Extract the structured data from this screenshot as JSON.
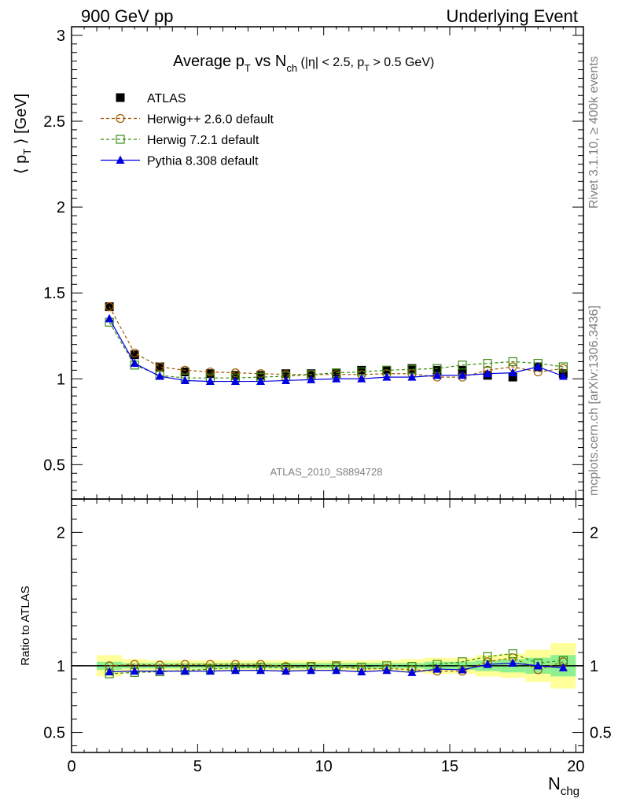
{
  "header": {
    "left": "900 GeV pp",
    "right": "Underlying Event"
  },
  "side": {
    "rivet": "Rivet 3.1.10, ≥ 400k events",
    "mcplots": "mcplots.cern.ch [arXiv:1306.3436]"
  },
  "chart_data": [
    {
      "type": "line",
      "title": {
        "main": "Average p",
        "main_sub": "T",
        "vs": " vs N",
        "vs_sub": "ch",
        "cuts_a": " (|η| < 2.5, p",
        "cuts_sub": "T",
        "cuts_b": " > 0.5 GeV)"
      },
      "analysis_label": "ATLAS_2010_S8894728",
      "ylabel": "⟨ p_T ⟩ [GeV]",
      "ylim": [
        0.3,
        3.05
      ],
      "y_ticks": [
        "0.5",
        "1",
        "1.5",
        "2",
        "2.5",
        "3"
      ],
      "x": [
        1.5,
        2.5,
        3.5,
        4.5,
        5.5,
        6.5,
        7.5,
        8.5,
        9.5,
        10.5,
        11.5,
        12.5,
        13.5,
        14.5,
        15.5,
        16.5,
        17.5,
        18.5,
        19.5
      ],
      "series": [
        {
          "name": "ATLAS",
          "style": "data",
          "color": "#000000",
          "marker": "square-filled",
          "values": [
            1.42,
            1.14,
            1.07,
            1.04,
            1.03,
            1.02,
            1.02,
            1.03,
            1.03,
            1.03,
            1.05,
            1.05,
            1.06,
            1.05,
            1.05,
            1.02,
            1.01,
            1.07,
            1.03
          ]
        },
        {
          "name": "Herwig++ 2.6.0 default",
          "style": "dashed",
          "color": "#a05a00",
          "marker": "circle-open",
          "values": [
            1.42,
            1.15,
            1.07,
            1.05,
            1.04,
            1.035,
            1.03,
            1.025,
            1.025,
            1.025,
            1.025,
            1.03,
            1.03,
            1.01,
            1.01,
            1.05,
            1.07,
            1.04,
            1.06
          ]
        },
        {
          "name": "Herwig 7.2.1 default",
          "style": "dashed",
          "color": "#3a8a10",
          "marker": "square-open",
          "values": [
            1.33,
            1.08,
            1.02,
            1.005,
            1.005,
            1.005,
            1.01,
            1.015,
            1.025,
            1.035,
            1.04,
            1.05,
            1.055,
            1.06,
            1.08,
            1.09,
            1.1,
            1.09,
            1.07
          ]
        },
        {
          "name": "Pythia 8.308 default",
          "style": "solid",
          "color": "#0000e0",
          "marker": "triangle-filled",
          "values": [
            1.35,
            1.09,
            1.015,
            0.99,
            0.985,
            0.985,
            0.985,
            0.99,
            0.995,
            1.0,
            1.0,
            1.01,
            1.01,
            1.02,
            1.02,
            1.03,
            1.035,
            1.07,
            1.015
          ]
        }
      ]
    },
    {
      "type": "line",
      "ylabel": "Ratio to ATLAS",
      "ylim": [
        0.35,
        2.25
      ],
      "y_ticks": [
        "0.5",
        "1",
        "2"
      ],
      "xlabel": "N",
      "xlabel_sub": "chg",
      "xlim": [
        0,
        20.3
      ],
      "x_ticks": [
        "0",
        "5",
        "10",
        "15",
        "20"
      ],
      "x": [
        1.5,
        2.5,
        3.5,
        4.5,
        5.5,
        6.5,
        7.5,
        8.5,
        9.5,
        10.5,
        11.5,
        12.5,
        13.5,
        14.5,
        15.5,
        16.5,
        17.5,
        18.5,
        19.5
      ],
      "band_stat": [
        0.03,
        0.02,
        0.02,
        0.02,
        0.02,
        0.02,
        0.02,
        0.02,
        0.02,
        0.02,
        0.02,
        0.02,
        0.02,
        0.03,
        0.03,
        0.04,
        0.05,
        0.06,
        0.08
      ],
      "band_total": [
        0.08,
        0.05,
        0.04,
        0.04,
        0.04,
        0.04,
        0.04,
        0.04,
        0.04,
        0.04,
        0.04,
        0.04,
        0.05,
        0.06,
        0.06,
        0.08,
        0.09,
        0.12,
        0.17
      ],
      "series": [
        {
          "name": "Herwig++ 2.6.0 default",
          "style": "dashed",
          "color": "#a05a00",
          "marker": "circle-open",
          "values": [
            1.0,
            1.01,
            1.005,
            1.01,
            1.01,
            1.01,
            1.01,
            0.995,
            0.995,
            0.995,
            0.975,
            0.98,
            0.97,
            0.96,
            0.96,
            1.03,
            1.06,
            0.97,
            1.03
          ]
        },
        {
          "name": "Herwig 7.2.1 default",
          "style": "dashed",
          "color": "#3a8a10",
          "marker": "square-open",
          "values": [
            0.94,
            0.95,
            0.955,
            0.965,
            0.975,
            0.985,
            0.99,
            0.985,
            0.995,
            1.0,
            0.99,
            1.0,
            0.995,
            1.01,
            1.03,
            1.07,
            1.09,
            1.02,
            1.04
          ]
        },
        {
          "name": "Pythia 8.308 default",
          "style": "solid",
          "color": "#0000e0",
          "marker": "triangle-filled",
          "values": [
            0.955,
            0.96,
            0.96,
            0.96,
            0.96,
            0.965,
            0.965,
            0.96,
            0.965,
            0.965,
            0.955,
            0.965,
            0.95,
            0.975,
            0.97,
            1.01,
            1.02,
            1.0,
            0.985
          ]
        }
      ]
    }
  ]
}
